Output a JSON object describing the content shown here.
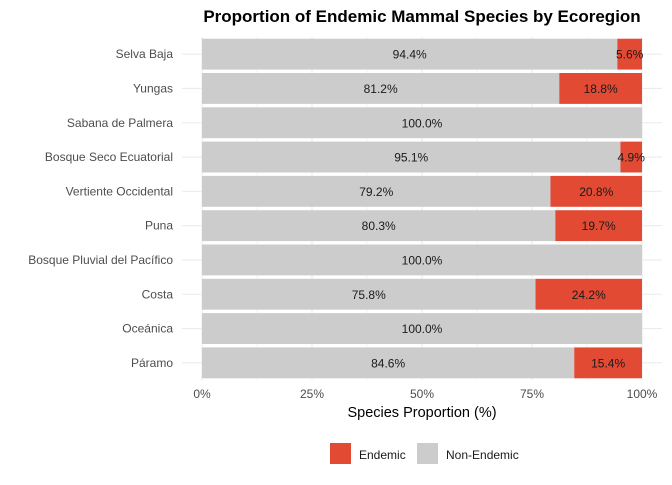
{
  "chart_data": {
    "type": "bar",
    "orientation": "horizontal",
    "stacked": true,
    "title": "Proportion of Endemic Mammal Species by Ecoregion",
    "xlabel": "Species Proportion (%)",
    "ylabel": "",
    "xlim": [
      0,
      100
    ],
    "xticks": [
      "0%",
      "25%",
      "50%",
      "75%",
      "100%"
    ],
    "grid": true,
    "legend_position": "bottom",
    "categories": [
      "Selva Baja",
      "Yungas",
      "Sabana de Palmera",
      "Bosque Seco Ecuatorial",
      "Vertiente Occidental",
      "Puna",
      "Bosque Pluvial del Pacífico",
      "Costa",
      "Oceánica",
      "Páramo"
    ],
    "series": [
      {
        "name": "Non-Endemic",
        "color": "#CCCCCC",
        "values": [
          94.4,
          81.2,
          100.0,
          95.1,
          79.2,
          80.3,
          100.0,
          75.8,
          100.0,
          84.6
        ]
      },
      {
        "name": "Endemic",
        "color": "#E34A33",
        "values": [
          5.6,
          18.8,
          0.0,
          4.9,
          20.8,
          19.7,
          0.0,
          24.2,
          0.0,
          15.4
        ]
      }
    ],
    "legend": [
      "Endemic",
      "Non-Endemic"
    ]
  }
}
